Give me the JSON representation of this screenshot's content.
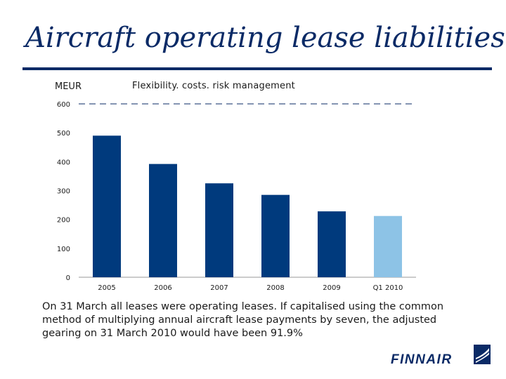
{
  "slide": {
    "title": "Aircraft operating lease liabilities",
    "unit": "MEUR",
    "subtitle": "Flexibility. costs. risk management",
    "caption": "On 31 March all leases were operating leases. If capitalised using the common method of multiplying annual aircraft lease payments by seven, the adjusted gearing on 31 March 2010 would have been 91.9%",
    "logo_text": "FINNAIR"
  },
  "colors": {
    "primary": "#003a7d",
    "highlight": "#8dc3e6",
    "title": "#0a2a66"
  },
  "chart_data": {
    "type": "bar",
    "title": "Flexibility. costs. risk management",
    "ylabel": "MEUR",
    "xlabel": "",
    "categories": [
      "2005",
      "2006",
      "2007",
      "2008",
      "2009",
      "Q1 2010"
    ],
    "values": [
      490,
      392,
      325,
      285,
      228,
      212
    ],
    "highlighted": [
      false,
      false,
      false,
      false,
      false,
      true
    ],
    "ylim": [
      0,
      600
    ],
    "yticks": [
      0,
      100,
      200,
      300,
      400,
      500,
      600
    ],
    "grid": false,
    "reference_line": 600
  }
}
